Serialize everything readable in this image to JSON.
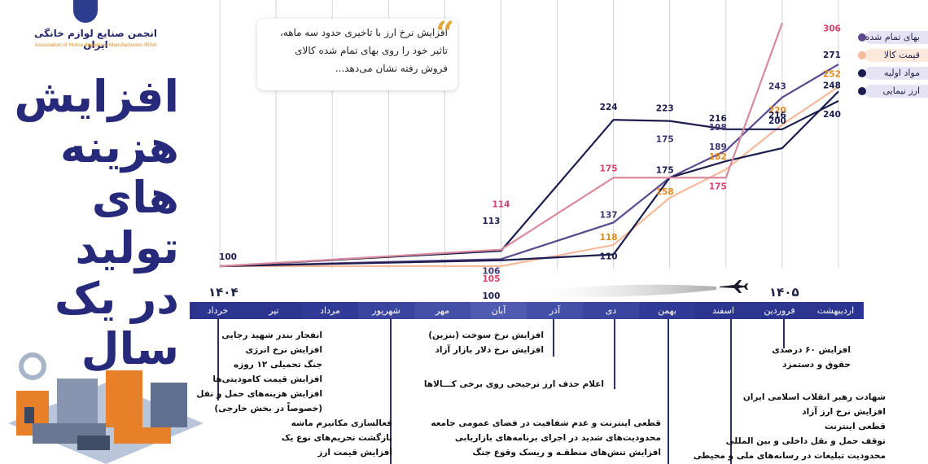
{
  "header": {
    "logo_fa": "انجمن صنایع لوازم خانگی ایران",
    "logo_en": "Association of Home Appliance Manufacturers IRAN",
    "title_lines": [
      "افزایش",
      "هزینه های",
      "تولید",
      "در یک سال"
    ]
  },
  "quote": {
    "lines": [
      "افزایش نرخ ارز با تاخیری حدود سه ماهه،",
      "تاثیر خود را روی بهای تمام شده کالای",
      "فروش رفته نشان می‌دهد..."
    ]
  },
  "colors": {
    "navy": "#1b1d4e",
    "purple": "#5b4a8e",
    "pink": "#d98a9c",
    "peach": "#f6b99a",
    "timeline": "#2b3590",
    "legend_bg": "#e6e3f4"
  },
  "chart_data": {
    "type": "line",
    "title": "",
    "years": [
      "۱۴۰۴",
      "۱۴۰۵"
    ],
    "categories": [
      "خرداد",
      "تیر",
      "مرداد",
      "شهریور",
      "مهر",
      "آبان",
      "آذر",
      "دی",
      "بهمن",
      "اسفند",
      "فروردین",
      "اردیبهشت"
    ],
    "series": [
      {
        "name": "بهای تمام شده",
        "color": "#5b4a8e",
        "points": [
          [
            "خرداد",
            100
          ],
          [
            "آبان",
            106
          ],
          [
            "دی",
            137
          ],
          [
            "بهمن",
            175
          ],
          [
            "اسفند",
            198
          ],
          [
            "فروردین",
            243
          ],
          [
            "اردیبهشت",
            271
          ]
        ]
      },
      {
        "name": "قیمت کالا",
        "color": "#f6b99a",
        "points": [
          [
            "خرداد",
            100
          ],
          [
            "آبان",
            100
          ],
          [
            "دی",
            118
          ],
          [
            "بهمن",
            158
          ],
          [
            "اسفند",
            182
          ],
          [
            "فروردین",
            220
          ],
          [
            "اردیبهشت",
            252
          ]
        ]
      },
      {
        "name": "مواد اولیه",
        "color": "#1b1d4e",
        "points": [
          [
            "خرداد",
            100
          ],
          [
            "آبان",
            105
          ],
          [
            "دی",
            110
          ],
          [
            "بهمن",
            175
          ],
          [
            "اسفند",
            189
          ],
          [
            "فروردین",
            200
          ],
          [
            "اردیبهشت",
            248
          ]
        ]
      },
      {
        "name": "ارز نیمایی",
        "color": "#1b1d4e",
        "points": [
          [
            "خرداد",
            100
          ],
          [
            "آبان",
            113
          ],
          [
            "دی",
            224
          ],
          [
            "بهمن",
            223
          ],
          [
            "اسفند",
            216
          ],
          [
            "فروردین",
            216
          ],
          [
            "اردیبهشت",
            240
          ]
        ]
      },
      {
        "name": "",
        "color": "#d98a9c",
        "points": [
          [
            "خرداد",
            100
          ],
          [
            "آبان",
            114
          ],
          [
            "دی",
            175
          ],
          [
            "بهمن",
            175
          ],
          [
            "اسفند",
            175
          ],
          [
            "فروردین",
            306
          ]
        ]
      }
    ],
    "point_labels": [
      {
        "text": "100",
        "x": "خرداد",
        "y": 100,
        "color": "#1b1d4e"
      },
      {
        "text": "114",
        "x": "آبان",
        "y": 114,
        "color": "#d9416b"
      },
      {
        "text": "113",
        "x": "آبان",
        "y": 113,
        "color": "#1b1d4e"
      },
      {
        "text": "106",
        "x": "آبان",
        "y": 106,
        "color": "#3d3573"
      },
      {
        "text": "105",
        "x": "آبان",
        "y": 105,
        "color": "#d9416b"
      },
      {
        "text": "100",
        "x": "آبان",
        "y": 100,
        "color": "#1b1d4e"
      },
      {
        "text": "224",
        "x": "دی",
        "y": 224,
        "color": "#1b1d4e"
      },
      {
        "text": "175",
        "x": "دی",
        "y": 175,
        "color": "#d9416b"
      },
      {
        "text": "137",
        "x": "دی",
        "y": 137,
        "color": "#3d3573"
      },
      {
        "text": "118",
        "x": "دی",
        "y": 118,
        "color": "#e08a1d"
      },
      {
        "text": "110",
        "x": "دی",
        "y": 110,
        "color": "#1b1d4e"
      },
      {
        "text": "223",
        "x": "بهمن",
        "y": 223,
        "color": "#1b1d4e"
      },
      {
        "text": "175",
        "x": "بهمن",
        "y": 175,
        "color": "#3d3573"
      },
      {
        "text": "175",
        "x": "بهمن",
        "y": 175,
        "color": "#1b1d4e"
      },
      {
        "text": "158",
        "x": "بهمن",
        "y": 158,
        "color": "#e08a1d"
      },
      {
        "text": "216",
        "x": "اسفند",
        "y": 216,
        "color": "#1b1d4e"
      },
      {
        "text": "198",
        "x": "اسفند",
        "y": 198,
        "color": "#3d3573"
      },
      {
        "text": "189",
        "x": "اسفند",
        "y": 189,
        "color": "#3d3573"
      },
      {
        "text": "182",
        "x": "اسفند",
        "y": 182,
        "color": "#e08a1d"
      },
      {
        "text": "175",
        "x": "اسفند",
        "y": 175,
        "color": "#d9416b"
      },
      {
        "text": "243",
        "x": "فروردین",
        "y": 243,
        "color": "#3d3573"
      },
      {
        "text": "220",
        "x": "فروردین",
        "y": 220,
        "color": "#e08a1d"
      },
      {
        "text": "216",
        "x": "فروردین",
        "y": 216,
        "color": "#1b1d4e"
      },
      {
        "text": "200",
        "x": "فروردین",
        "y": 200,
        "color": "#1b1d4e"
      },
      {
        "text": "306",
        "x": "اردیبهشت",
        "y": 306,
        "color": "#d9416b"
      },
      {
        "text": "271",
        "x": "اردیبهشت",
        "y": 271,
        "color": "#1b1d4e"
      },
      {
        "text": "252",
        "x": "اردیبهشت",
        "y": 252,
        "color": "#e08a1d"
      },
      {
        "text": "248",
        "x": "اردیبهشت",
        "y": 248,
        "color": "#1b1d4e"
      },
      {
        "text": "240",
        "x": "اردیبهشت",
        "y": 240,
        "color": "#1b1d4e"
      }
    ]
  },
  "legend": [
    {
      "label": "بهای تمام شده",
      "color": "#5b4a8e",
      "bg": "#e6e3f4"
    },
    {
      "label": "قیمت کالا",
      "color": "#f6b99a",
      "bg": "#fde9dc"
    },
    {
      "label": "مواد اولیه",
      "color": "#1b1d4e",
      "bg": "#e6e3f4"
    },
    {
      "label": "ارز نیمایی",
      "color": "#1b1d4e",
      "bg": "#e6e3f4"
    }
  ],
  "events": {
    "khordad": [
      "انفجار بندر شهید رجایی",
      "افزایش نرخ انرژی",
      "جنگ تحمیلی ۱۲ روزه",
      "افزایش قیمت کامودیتی‌ها",
      "افزایش هزینه‌های حمل و نقل",
      "(خصوصاً در بخش خارجی)"
    ],
    "shahrivar": [
      "فعالسازی مکانیزم ماشه",
      "بازگشت تحریم‌های نوع یک",
      "افزایش قیمت ارز"
    ],
    "aban": [
      "افزایش نرخ سوخت (بنزین)",
      "افزایش نرخ دلار بازار آزاد"
    ],
    "dey": [
      "اعلام حذف ارز ترجیحی روی برخی کـــالاها"
    ],
    "bahman": [
      "قطعی اینترنت و عدم شفافیت در فضای عمومی جامعه",
      "محدودیت‌های شدید در اجرای برنامه‌های بازاریابی",
      "افزایش تنش‌های منطقـه و ریسک وقوع جنگ"
    ],
    "esfand": [
      "شهادت رهبر انقلاب اسلامی ایران",
      "افزایش نرخ ارز آزاد",
      "قطعی اینترنت",
      "توقف حمل و نقل داخلی و بین المللی",
      "محدودیت تبلیغات در رسانه‌های ملی و محیطی"
    ],
    "farvardin": [
      "افزایش ۶۰ درصدی",
      "حقوق و دستمزد"
    ]
  }
}
